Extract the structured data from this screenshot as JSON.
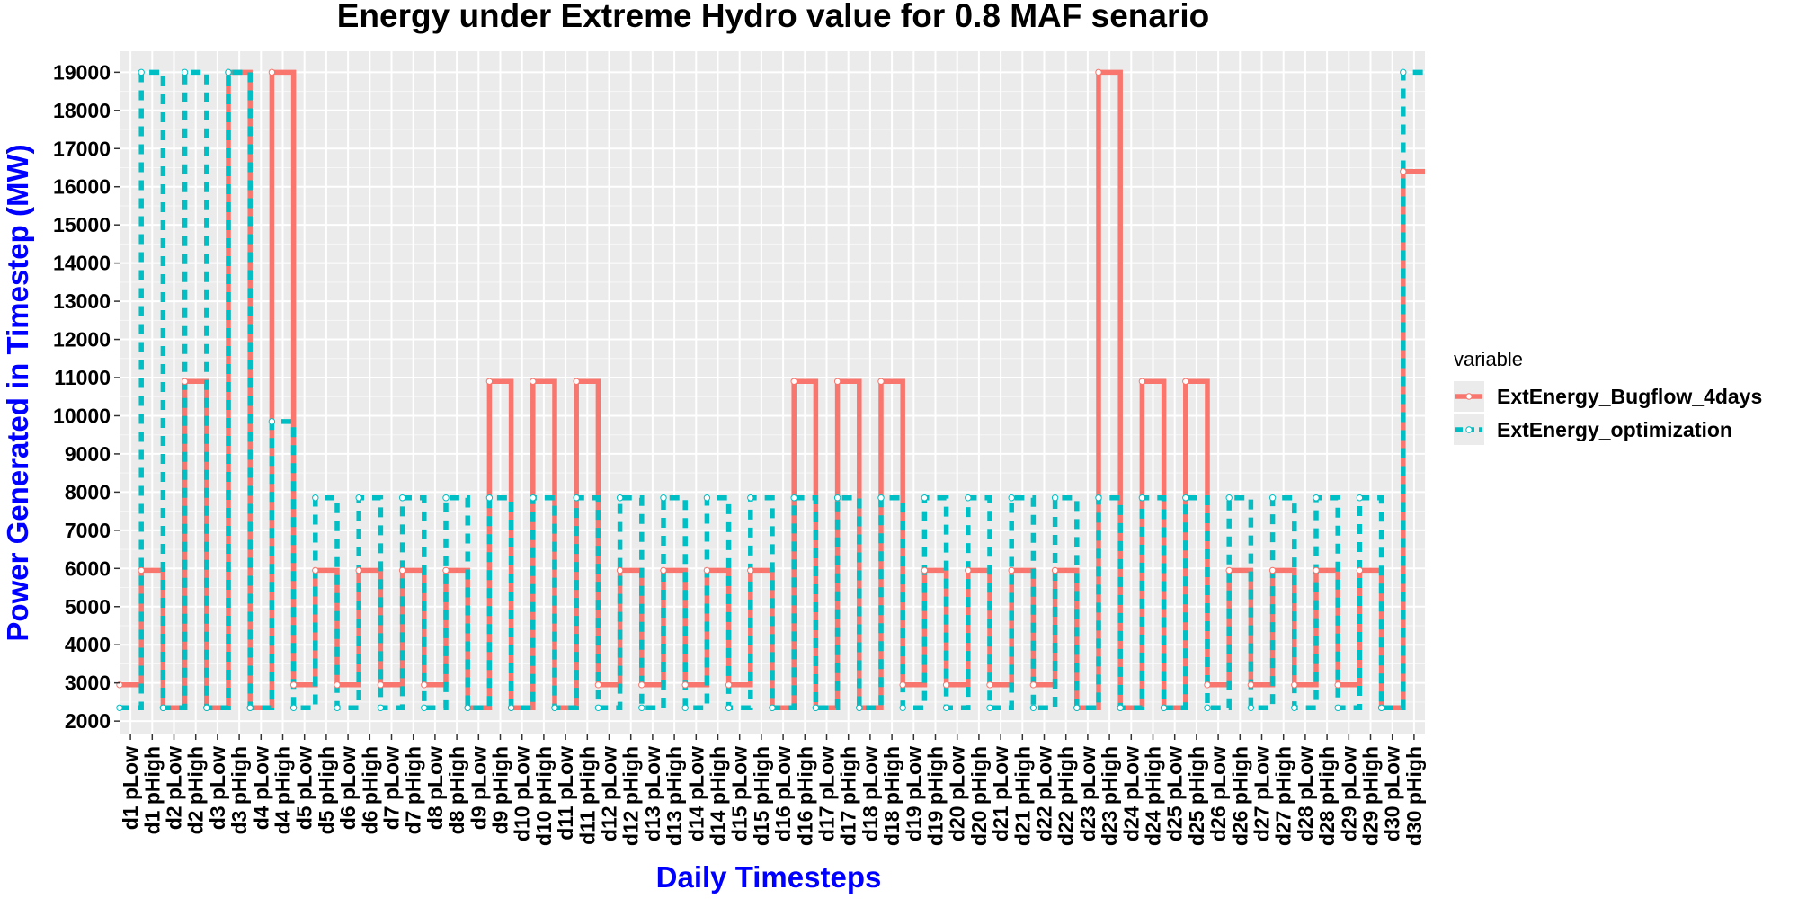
{
  "chart_data": {
    "type": "line",
    "title": "Energy under Extreme Hydro value for 0.8 MAF senario",
    "xlabel": "Daily Timesteps",
    "ylabel": "Power Generated in Timestep (MW)",
    "ylim": [
      1650,
      19550
    ],
    "yticks": [
      2000,
      3000,
      4000,
      5000,
      6000,
      7000,
      8000,
      9000,
      10000,
      11000,
      12000,
      13000,
      14000,
      15000,
      16000,
      17000,
      18000,
      19000
    ],
    "grid": true,
    "legend_title": "variable",
    "legend_position": "right",
    "categories": [
      "d1 pLow",
      "d1 pHigh",
      "d2 pLow",
      "d2 pHigh",
      "d3 pLow",
      "d3 pHigh",
      "d4 pLow",
      "d4 pHigh",
      "d5 pLow",
      "d5 pHigh",
      "d6 pLow",
      "d6 pHigh",
      "d7 pLow",
      "d7 pHigh",
      "d8 pLow",
      "d8 pHigh",
      "d9 pLow",
      "d9 pHigh",
      "d10 pLow",
      "d10 pHigh",
      "d11 pLow",
      "d11 pHigh",
      "d12 pLow",
      "d12 pHigh",
      "d13 pLow",
      "d13 pHigh",
      "d14 pLow",
      "d14 pHigh",
      "d15 pLow",
      "d15 pHigh",
      "d16 pLow",
      "d16 pHigh",
      "d17 pLow",
      "d17 pHigh",
      "d18 pLow",
      "d18 pHigh",
      "d19 pLow",
      "d19 pHigh",
      "d20 pLow",
      "d20 pHigh",
      "d21 pLow",
      "d21 pHigh",
      "d22 pLow",
      "d22 pHigh",
      "d23 pLow",
      "d23 pHigh",
      "d24 pLow",
      "d24 pHigh",
      "d25 pLow",
      "d25 pHigh",
      "d26 pLow",
      "d26 pHigh",
      "d27 pLow",
      "d27 pHigh",
      "d28 pLow",
      "d28 pHigh",
      "d29 pLow",
      "d29 pHigh",
      "d30 pLow",
      "d30 pHigh"
    ],
    "series": [
      {
        "name": "ExtEnergy_Bugflow_4days",
        "color": "#f8766d",
        "style": "solid",
        "values": [
          2950,
          5950,
          2350,
          10900,
          2350,
          19000,
          2350,
          19000,
          2950,
          5950,
          2950,
          5950,
          2950,
          5950,
          2950,
          5950,
          2350,
          10900,
          2350,
          10900,
          2350,
          10900,
          2950,
          5950,
          2950,
          5950,
          2950,
          5950,
          2950,
          5950,
          2350,
          10900,
          2350,
          10900,
          2350,
          10900,
          2950,
          5950,
          2950,
          5950,
          2950,
          5950,
          2950,
          5950,
          2350,
          19000,
          2350,
          10900,
          2350,
          10900,
          2950,
          5950,
          2950,
          5950,
          2950,
          5950,
          2950,
          5950,
          2350,
          16400
        ]
      },
      {
        "name": "ExtEnergy_optimization",
        "color": "#00bfc4",
        "style": "dashed",
        "values": [
          2350,
          19000,
          2350,
          19000,
          2350,
          19000,
          2350,
          9850,
          2350,
          7850,
          2350,
          7850,
          2350,
          7850,
          2350,
          7850,
          2350,
          7850,
          2350,
          7850,
          2350,
          7850,
          2350,
          7850,
          2350,
          7850,
          2350,
          7850,
          2350,
          7850,
          2350,
          7850,
          2350,
          7850,
          2350,
          7850,
          2350,
          7850,
          2350,
          7850,
          2350,
          7850,
          2350,
          7850,
          2350,
          7850,
          2350,
          7850,
          2350,
          7850,
          2350,
          7850,
          2350,
          7850,
          2350,
          7850,
          2350,
          7850,
          2350,
          19000
        ]
      }
    ]
  }
}
